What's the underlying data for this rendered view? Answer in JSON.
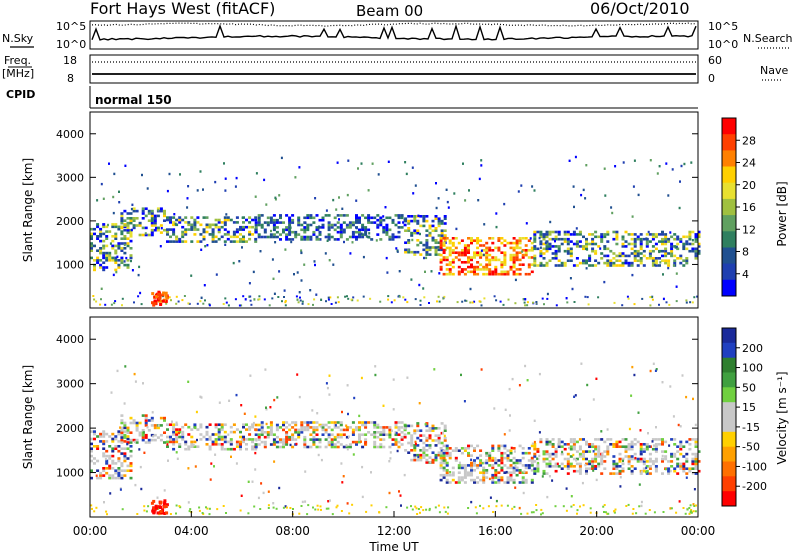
{
  "header": {
    "station": "Fort Hays West (fitACF)",
    "beam": "Beam 00",
    "date": "06/Oct/2010"
  },
  "left_labels": {
    "nsky": "N.Sky",
    "freq": "Freq.",
    "mhz": "[MHz]",
    "cpid": "CPID"
  },
  "right_labels": {
    "nsearch": "N.Search",
    "nave": "Nave"
  },
  "cpid_text": "normal 150",
  "noise_axis": {
    "top": "10^5",
    "bottom": "10^0"
  },
  "freq_axis": {
    "left_top": "18",
    "left_bottom": "8",
    "right_top": "60",
    "right_bottom": "0"
  },
  "power_colorbar": {
    "title": "Power [dB]",
    "ticks": [
      "28",
      "24",
      "20",
      "16",
      "12",
      "8",
      "4"
    ],
    "colors": [
      "#ff0000",
      "#ff4000",
      "#ff8000",
      "#ffd000",
      "#e8e030",
      "#a0c040",
      "#60a060",
      "#2f7f5f",
      "#205090",
      "#1f3fb0",
      "#0000ff"
    ]
  },
  "velocity_colorbar": {
    "title": "Velocity [m s⁻¹]",
    "ticks": [
      "200",
      "100",
      "50",
      "15",
      "-15",
      "-50",
      "-100",
      "-200"
    ],
    "colors": [
      "#1a2a9a",
      "#2040c0",
      "#2f7f2f",
      "#40a040",
      "#70d040",
      "#c8c8c8",
      "#c8c8c8",
      "#ffd000",
      "#ffa000",
      "#ff7000",
      "#ff4000",
      "#ff0000"
    ]
  },
  "chart_data": [
    {
      "type": "heatmap",
      "name": "power",
      "ylabel": "Slant Range [km]",
      "yticks": [
        "1000",
        "2000",
        "3000",
        "4000"
      ],
      "ylim": [
        0,
        4500
      ],
      "xlim": [
        "00:00",
        "24:00"
      ],
      "bands": [
        {
          "t0": 0.0,
          "t1": 1.6,
          "r0": 850,
          "r1": 1900,
          "level": "mid"
        },
        {
          "t0": 1.2,
          "t1": 3.0,
          "r0": 1650,
          "r1": 2300,
          "level": "mid"
        },
        {
          "t0": 3.0,
          "t1": 6.5,
          "r0": 1500,
          "r1": 2100,
          "level": "mid"
        },
        {
          "t0": 6.5,
          "t1": 12.4,
          "r0": 1550,
          "r1": 2150,
          "level": "low"
        },
        {
          "t0": 12.4,
          "t1": 14.0,
          "r0": 1200,
          "r1": 2100,
          "level": "mid"
        },
        {
          "t0": 13.8,
          "t1": 17.5,
          "r0": 750,
          "r1": 1600,
          "level": "high"
        },
        {
          "t0": 17.5,
          "t1": 24.0,
          "r0": 950,
          "r1": 1750,
          "level": "mid"
        }
      ]
    },
    {
      "type": "heatmap",
      "name": "velocity",
      "ylabel": "Slant Range [km]",
      "xlabel": "Time UT",
      "xticks": [
        "00:00",
        "04:00",
        "08:00",
        "12:00",
        "16:00",
        "20:00",
        "00:00"
      ],
      "yticks": [
        "1000",
        "2000",
        "3000",
        "4000"
      ],
      "ylim": [
        0,
        4500
      ],
      "xlim": [
        "00:00",
        "24:00"
      ],
      "bands": [
        {
          "t0": 0.0,
          "t1": 1.6,
          "r0": 850,
          "r1": 1900,
          "level": "mixed"
        },
        {
          "t0": 1.2,
          "t1": 3.0,
          "r0": 1650,
          "r1": 2300,
          "level": "mixed"
        },
        {
          "t0": 3.0,
          "t1": 6.5,
          "r0": 1500,
          "r1": 2100,
          "level": "mixed"
        },
        {
          "t0": 6.5,
          "t1": 12.4,
          "r0": 1550,
          "r1": 2150,
          "level": "mixed"
        },
        {
          "t0": 12.4,
          "t1": 14.0,
          "r0": 1200,
          "r1": 2100,
          "level": "mixed"
        },
        {
          "t0": 13.8,
          "t1": 17.5,
          "r0": 750,
          "r1": 1600,
          "level": "mixed"
        },
        {
          "t0": 17.5,
          "t1": 24.0,
          "r0": 950,
          "r1": 1750,
          "level": "mixed"
        }
      ]
    }
  ]
}
